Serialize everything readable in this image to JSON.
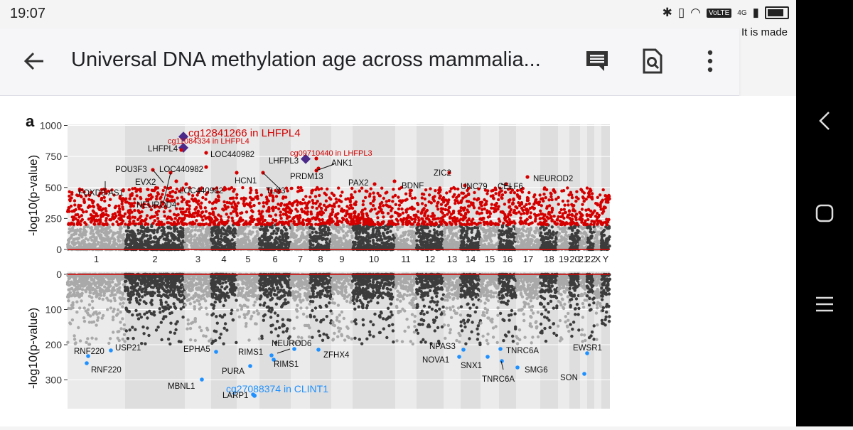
{
  "status_bar": {
    "time": "19:07",
    "network_badge": "VoLTE",
    "network_type": "4G"
  },
  "overlay_text": "It is made",
  "app_bar": {
    "title": "Universal DNA methylation age across mammalia..."
  },
  "figure": {
    "panel_label": "a",
    "top_plot": {
      "ylabel": "-log10(p-value)",
      "y_ticks": [
        "1000",
        "750",
        "500",
        "250",
        "0"
      ],
      "chromosomes": [
        "1",
        "2",
        "3",
        "4",
        "5",
        "6",
        "7",
        "8",
        "9",
        "10",
        "11",
        "12",
        "13",
        "14",
        "15",
        "16",
        "17",
        "18",
        "19",
        "20",
        "21",
        "22",
        "X",
        "Y"
      ],
      "highlights": [
        {
          "label": "cg12841266 in LHFPL4",
          "value": 910
        },
        {
          "label": "cg11084334 in LHFPL4",
          "value": 820
        },
        {
          "label": "cg09710440 in LHFPL3",
          "value": 730
        }
      ],
      "gene_labels": [
        {
          "label": "LHFPL4"
        },
        {
          "label": "LOC440982"
        },
        {
          "label": "POU3F3"
        },
        {
          "label": "LOC440982"
        },
        {
          "label": "LHFPL3"
        },
        {
          "label": "ANK1"
        },
        {
          "label": "PRDM13"
        },
        {
          "label": "HCN1"
        },
        {
          "label": "EVX2"
        },
        {
          "label": "FOXD3-AS1"
        },
        {
          "label": "LOC440982"
        },
        {
          "label": "TLX3"
        },
        {
          "label": "NEUROD4"
        },
        {
          "label": "PAX2"
        },
        {
          "label": "BDNF"
        },
        {
          "label": "ZIC2"
        },
        {
          "label": "UNC79"
        },
        {
          "label": "CELF6"
        },
        {
          "label": "NEUROD2"
        }
      ]
    },
    "bottom_plot": {
      "ylabel": "-log10(p-value)",
      "y_ticks": [
        "0",
        "100",
        "200",
        "300"
      ],
      "highlight": {
        "label": "cg27088374 in CLINT1",
        "value": 345
      },
      "gene_labels": [
        {
          "label": "RNF220"
        },
        {
          "label": "USP21"
        },
        {
          "label": "RNF220"
        },
        {
          "label": "EPHA5"
        },
        {
          "label": "MBNL1"
        },
        {
          "label": "RIMS1"
        },
        {
          "label": "PURA"
        },
        {
          "label": "LARP1"
        },
        {
          "label": "NEUROD6"
        },
        {
          "label": "RIMS1"
        },
        {
          "label": "ZFHX4"
        },
        {
          "label": "NPAS3"
        },
        {
          "label": "NOVA1"
        },
        {
          "label": "SNX1"
        },
        {
          "label": "TNRC6A"
        },
        {
          "label": "TNRC6A"
        },
        {
          "label": "SMG6"
        },
        {
          "label": "EWSR1"
        },
        {
          "label": "SON"
        }
      ]
    }
  },
  "colors": {
    "sig_red": "#d40000",
    "sig_blue": "#1e90ff",
    "highlight_purple": "#4b2a8a",
    "dark_gray": "#3c3c3c",
    "light_gray": "#a9a9a9"
  }
}
